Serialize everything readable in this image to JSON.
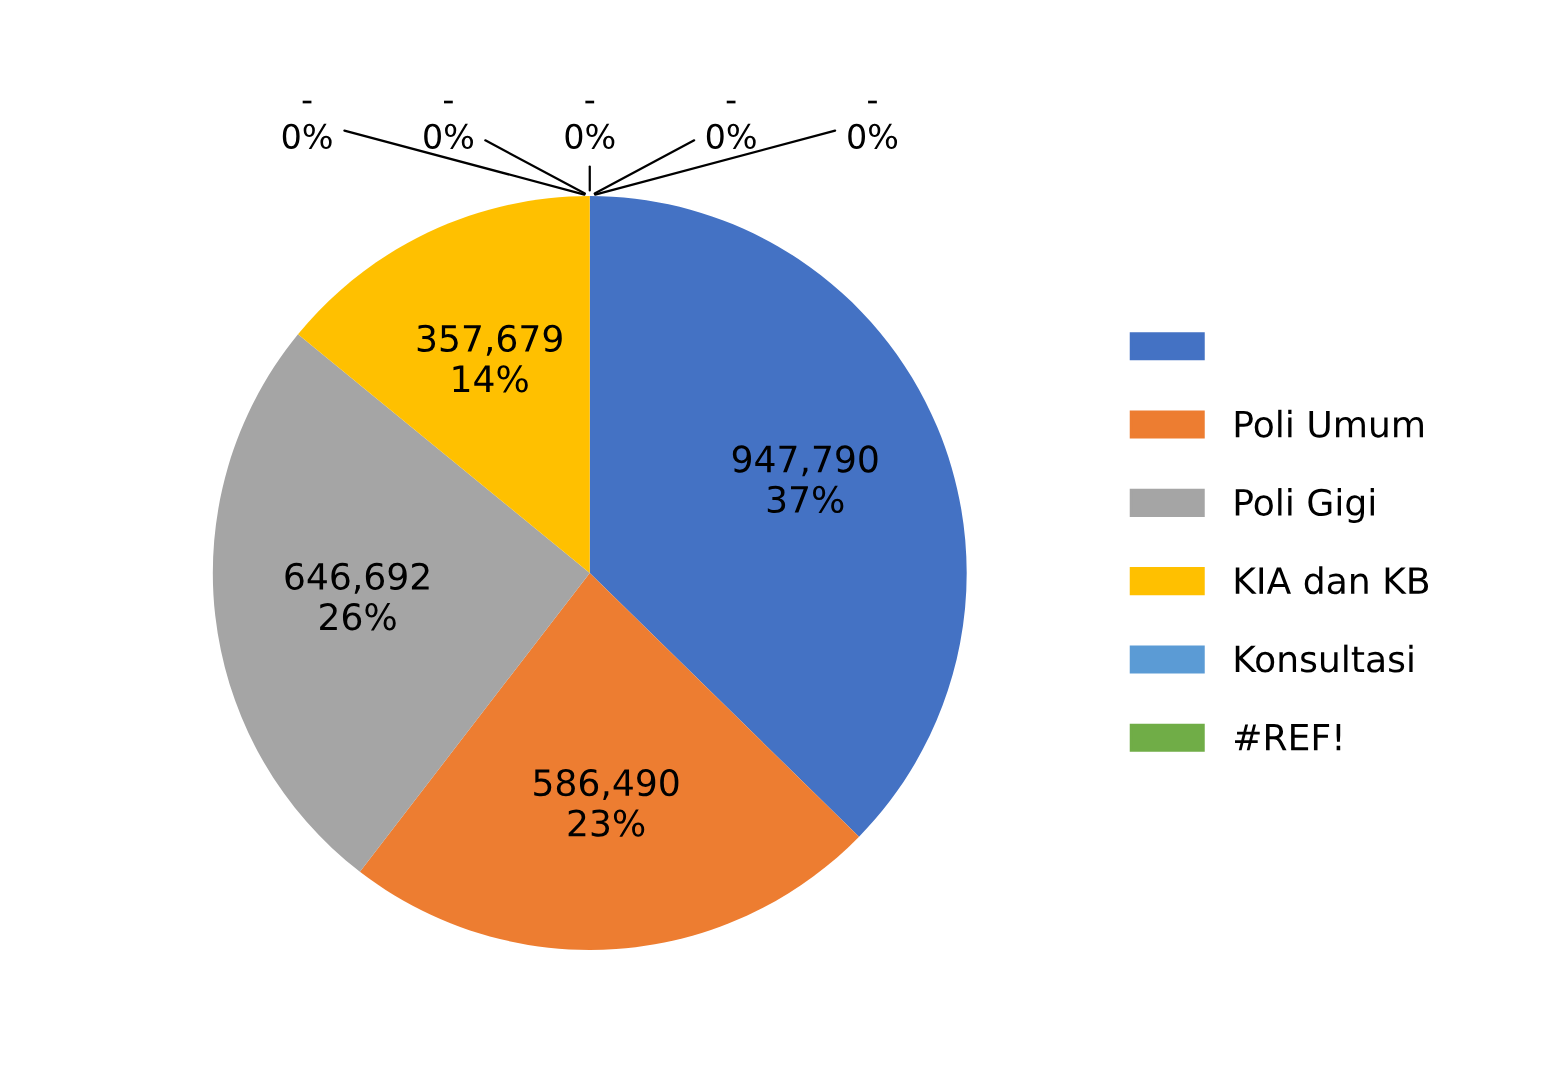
{
  "chart_data": {
    "type": "pie",
    "categories": [
      null,
      "Poli Umum",
      "Poli Gigi",
      "KIA dan KB",
      "Konsultasi",
      "#REF!",
      null,
      null,
      null
    ],
    "values": [
      947790,
      586490,
      646692,
      357679,
      0,
      0,
      0,
      0,
      0
    ],
    "colors": [
      "#4472c4",
      "#ed7d31",
      "#a5a5a5",
      "#ffc000",
      "#5b9bd5",
      "#70ad47",
      "#264478",
      "#9e480e",
      "#636363"
    ],
    "value_labels": [
      "947,790\n37%",
      "586,490\n23%",
      "646,692\n26%",
      "357,679\n14%",
      "-\n0%",
      "-\n0%",
      "-\n0%",
      "-\n0%",
      "-\n0%"
    ],
    "legend": "right"
  }
}
